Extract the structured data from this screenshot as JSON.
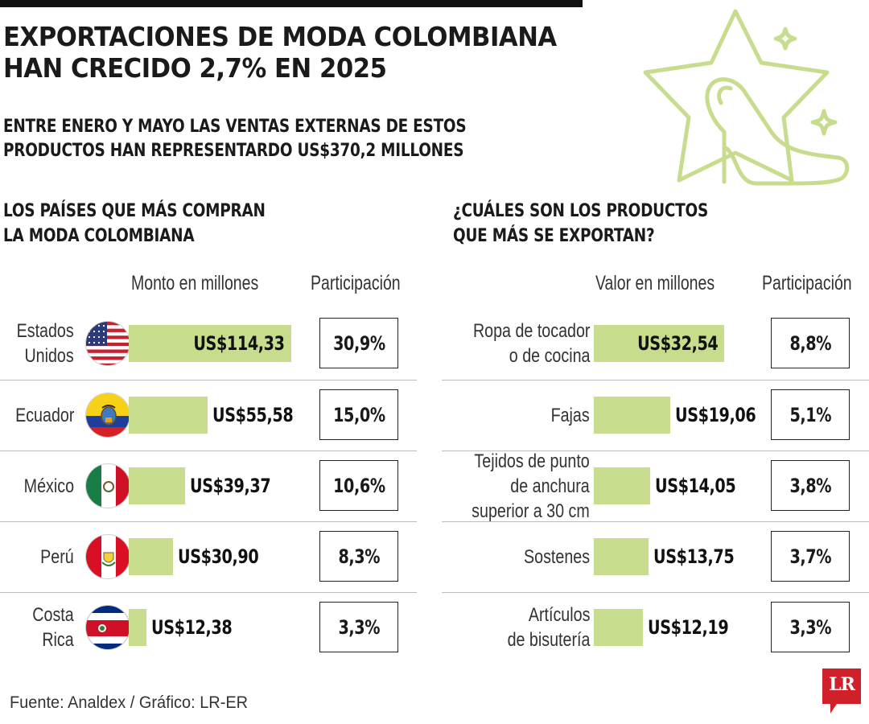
{
  "title_line1": "EXPORTACIONES DE MODA COLOMBIANA",
  "title_line2": "HAN CRECIDO 2,7% EN 2025",
  "subtitle_line1": "ENTRE ENERO Y MAYO LAS VENTAS EXTERNAS DE ESTOS",
  "subtitle_line2": "PRODUCTOS HAN REPRESENTARDO US$370,2 MILLONES",
  "source": "Fuente: Analdex / Gráfico: LR-ER",
  "logo": "LR",
  "icons": [
    "star-icon",
    "high-heel-shoe-icon",
    "sparkle-icon",
    "lr-logo"
  ],
  "colors": {
    "bar": "#c7dc8d",
    "deco": "#c7dc8d",
    "logo": "#d0202a"
  },
  "chart_data": [
    {
      "type": "bar",
      "orientation": "horizontal",
      "title_line1": "LOS PAÍSES QUE MÁS COMPRAN",
      "title_line2": "LA MODA COLOMBIANA",
      "value_header": "Monto en millones",
      "share_header": "Participación",
      "categories": [
        {
          "lines": [
            "Estados",
            "Unidos"
          ],
          "flag": "usa-flag-icon"
        },
        {
          "lines": [
            "Ecuador"
          ],
          "flag": "ecuador-flag-icon"
        },
        {
          "lines": [
            "México"
          ],
          "flag": "mexico-flag-icon"
        },
        {
          "lines": [
            "Perú"
          ],
          "flag": "peru-flag-icon"
        },
        {
          "lines": [
            "Costa",
            "Rica"
          ],
          "flag": "costa-rica-flag-icon"
        }
      ],
      "values": [
        114.33,
        55.58,
        39.37,
        30.9,
        12.38
      ],
      "value_labels": [
        "US$114,33",
        "US$55,58",
        "US$39,37",
        "US$30,90",
        "US$12,38"
      ],
      "shares": [
        "30,9%",
        "15,0%",
        "10,6%",
        "8,3%",
        "3,3%"
      ]
    },
    {
      "type": "bar",
      "orientation": "horizontal",
      "title_line1": "¿CUÁLES SON LOS PRODUCTOS",
      "title_line2": "QUE MÁS SE EXPORTAN?",
      "value_header": "Valor en millones",
      "share_header": "Participación",
      "categories": [
        {
          "lines": [
            "Ropa de tocador",
            "o de cocina"
          ]
        },
        {
          "lines": [
            "Fajas"
          ]
        },
        {
          "lines": [
            "Tejidos de punto",
            "de anchura",
            "superior a 30 cm"
          ]
        },
        {
          "lines": [
            "Sostenes"
          ]
        },
        {
          "lines": [
            "Artículos",
            "de bisutería"
          ]
        }
      ],
      "values": [
        32.54,
        19.06,
        14.05,
        13.75,
        12.19
      ],
      "value_labels": [
        "US$32,54",
        "US$19,06",
        "US$14,05",
        "US$13,75",
        "US$12,19"
      ],
      "shares": [
        "8,8%",
        "5,1%",
        "3,8%",
        "3,7%",
        "3,3%"
      ]
    }
  ]
}
